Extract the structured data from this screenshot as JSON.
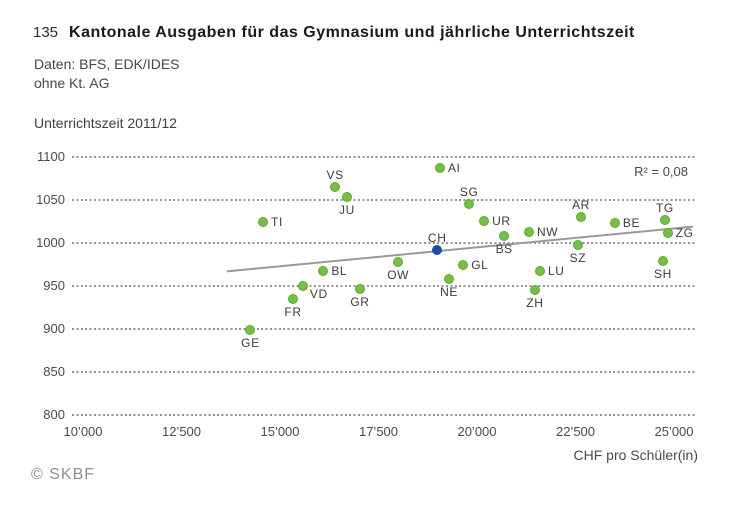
{
  "header": {
    "number": "135",
    "title": "Kantonale Ausgaben für das Gymnasium und jährliche Unterrichtszeit",
    "source_line1": "Daten: BFS, EDK/IDES",
    "source_line2": "ohne Kt. AG"
  },
  "footer": {
    "copyright": "© SKBF"
  },
  "chart_data": {
    "type": "scatter",
    "ylabel": "Unterrichtszeit 2011/12",
    "xlabel": "CHF pro Schüler(in)",
    "annotation": "R² = 0,08",
    "xlim": [
      9700,
      25600
    ],
    "ylim": [
      800,
      1100
    ],
    "xticks": {
      "values": [
        10000,
        12500,
        15000,
        17500,
        20000,
        22500,
        25000
      ],
      "labels": [
        "10’000",
        "12’500",
        "15’000",
        "17’500",
        "20’000",
        "22’500",
        "25’000"
      ]
    },
    "yticks": [
      1100,
      1050,
      1000,
      950,
      900,
      850,
      800
    ],
    "grid": true,
    "colors": {
      "point": "#74bf44",
      "point_rim": "#5ea838",
      "highlight": "#1d4f9e",
      "trend": "#999999",
      "gridline": "#949494"
    },
    "points": [
      {
        "code": "GE",
        "x": 14250,
        "y": 899,
        "label_pos": "below"
      },
      {
        "code": "FR",
        "x": 15330,
        "y": 935,
        "label_pos": "below"
      },
      {
        "code": "VD",
        "x": 15580,
        "y": 950,
        "label_pos": "right-below"
      },
      {
        "code": "TI",
        "x": 14570,
        "y": 1024,
        "label_pos": "right"
      },
      {
        "code": "VS",
        "x": 16400,
        "y": 1065,
        "label_pos": "above"
      },
      {
        "code": "JU",
        "x": 16700,
        "y": 1053,
        "label_pos": "below"
      },
      {
        "code": "BL",
        "x": 16100,
        "y": 968,
        "label_pos": "right"
      },
      {
        "code": "GR",
        "x": 17030,
        "y": 946,
        "label_pos": "below"
      },
      {
        "code": "OW",
        "x": 18000,
        "y": 978,
        "label_pos": "below"
      },
      {
        "code": "AI",
        "x": 19060,
        "y": 1087,
        "label_pos": "right"
      },
      {
        "code": "CH",
        "x": 18990,
        "y": 992,
        "label_pos": "above",
        "highlight": true
      },
      {
        "code": "NE",
        "x": 19290,
        "y": 958,
        "label_pos": "below"
      },
      {
        "code": "GL",
        "x": 19650,
        "y": 974,
        "label_pos": "right"
      },
      {
        "code": "SG",
        "x": 19800,
        "y": 1045,
        "label_pos": "above"
      },
      {
        "code": "UR",
        "x": 20180,
        "y": 1026,
        "label_pos": "right"
      },
      {
        "code": "BS",
        "x": 20690,
        "y": 1008,
        "label_pos": "below"
      },
      {
        "code": "NW",
        "x": 21320,
        "y": 1013,
        "label_pos": "right"
      },
      {
        "code": "LU",
        "x": 21600,
        "y": 967,
        "label_pos": "right"
      },
      {
        "code": "ZH",
        "x": 21470,
        "y": 945,
        "label_pos": "below"
      },
      {
        "code": "SZ",
        "x": 22560,
        "y": 998,
        "label_pos": "below"
      },
      {
        "code": "AR",
        "x": 22640,
        "y": 1030,
        "label_pos": "above"
      },
      {
        "code": "BE",
        "x": 23500,
        "y": 1023,
        "label_pos": "right"
      },
      {
        "code": "TG",
        "x": 24770,
        "y": 1027,
        "label_pos": "above"
      },
      {
        "code": "ZG",
        "x": 24840,
        "y": 1012,
        "label_pos": "right"
      },
      {
        "code": "SH",
        "x": 24720,
        "y": 979,
        "label_pos": "below"
      }
    ],
    "trendline": {
      "x1": 13650,
      "y1": 967,
      "x2": 25480,
      "y2": 1019
    }
  }
}
